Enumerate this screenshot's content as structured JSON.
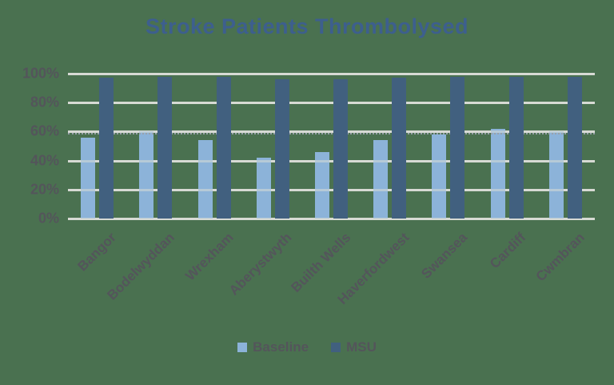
{
  "chart_data": {
    "type": "bar",
    "title": "Stroke Patients Thrombolysed",
    "xlabel": "",
    "ylabel": "",
    "categories": [
      "Bangor",
      "Bodelwyddan",
      "Wrexham",
      "Aberystwyth",
      "Builth Wells",
      "Haverfordwest",
      "Swansea",
      "Cardiff",
      "Cwmbran"
    ],
    "series": [
      {
        "name": "Baseline",
        "color": "#8cb3d9",
        "values": [
          56,
          60,
          54,
          42,
          46,
          54,
          58,
          62,
          60
        ]
      },
      {
        "name": "MSU",
        "color": "#41607f",
        "values": [
          97,
          98,
          98,
          96,
          96,
          97,
          98,
          98,
          98
        ]
      }
    ],
    "y_axis": {
      "min": 0,
      "max": 100,
      "step": 20,
      "tick_labels": [
        "0%",
        "20%",
        "40%",
        "60%",
        "80%",
        "100%"
      ]
    },
    "grid": "horizontal",
    "dotted_reference_line": {
      "value": 59,
      "style": "dotted"
    },
    "legend": {
      "position": "bottom",
      "entries": [
        "Baseline",
        "MSU"
      ]
    },
    "colors": {
      "background": "#4a7150",
      "title": "#3d5f8e",
      "axis_text": "#54555b",
      "gridline": "#d4d8d2",
      "dotted_line": "#99a1ab"
    }
  }
}
